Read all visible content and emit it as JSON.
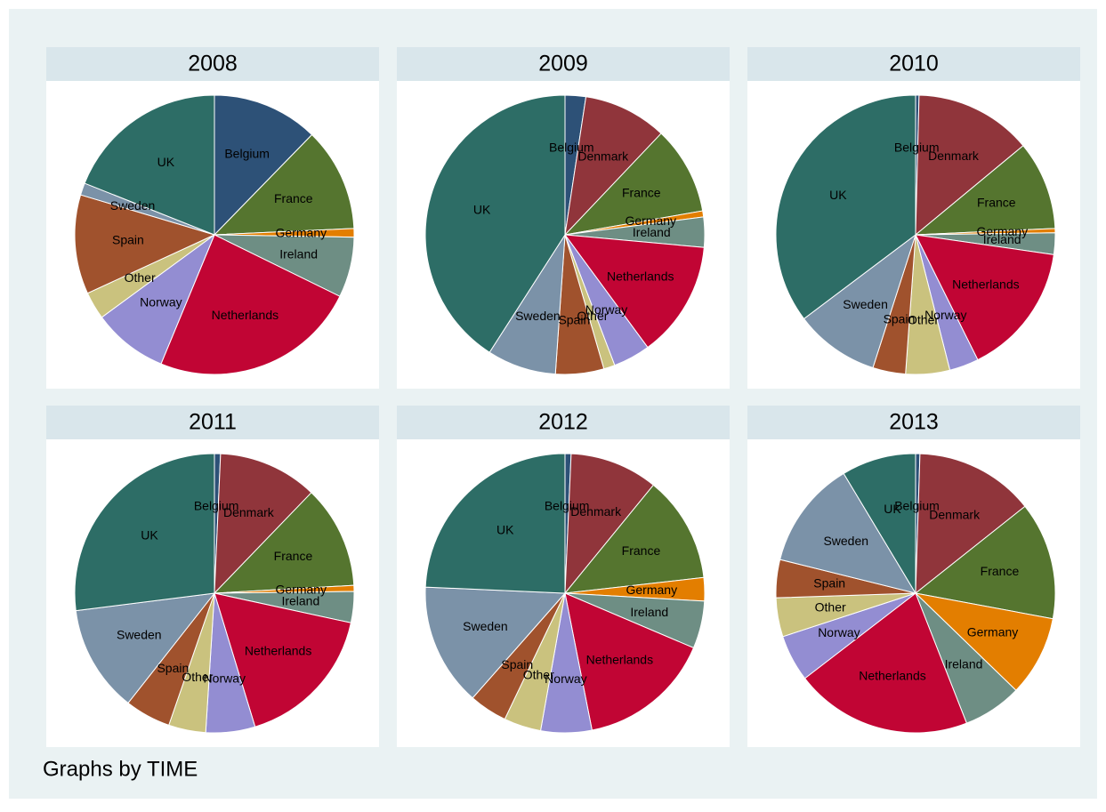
{
  "chart_data": [
    {
      "type": "pie",
      "title": "2008",
      "categories": [
        "Belgium",
        "France",
        "Germany",
        "Ireland",
        "Netherlands",
        "Norway",
        "Other",
        "Spain",
        "Sweden",
        "UK"
      ],
      "values": [
        12.3,
        12,
        1,
        7,
        24,
        8.7,
        3.2,
        11.5,
        1.4,
        19
      ],
      "colors": [
        "#2d5177",
        "#55752f",
        "#e37e00",
        "#6e8e84",
        "#c10534",
        "#938dd2",
        "#cac27e",
        "#a0522d",
        "#7b92a8",
        "#2d6d66"
      ]
    },
    {
      "type": "pie",
      "title": "2009",
      "categories": [
        "Belgium",
        "Denmark",
        "France",
        "Germany",
        "Ireland",
        "Netherlands",
        "Norway",
        "Other",
        "Spain",
        "Sweden",
        "UK"
      ],
      "values": [
        2.4,
        9.7,
        10.2,
        0.7,
        3.5,
        13.5,
        4.3,
        1.3,
        5.6,
        8,
        41
      ],
      "colors": [
        "#2d5177",
        "#90353b",
        "#55752f",
        "#e37e00",
        "#6e8e84",
        "#c10534",
        "#938dd2",
        "#cac27e",
        "#a0522d",
        "#7b92a8",
        "#2d6d66"
      ]
    },
    {
      "type": "pie",
      "title": "2010",
      "categories": [
        "Belgium",
        "Denmark",
        "France",
        "Germany",
        "Ireland",
        "Netherlands",
        "Norway",
        "Other",
        "Spain",
        "Sweden",
        "UK"
      ],
      "values": [
        0.4,
        13.6,
        10.3,
        0.5,
        2.5,
        15.4,
        3.4,
        5.1,
        3.8,
        9.8,
        35.3
      ],
      "colors": [
        "#2d5177",
        "#90353b",
        "#55752f",
        "#e37e00",
        "#6e8e84",
        "#c10534",
        "#938dd2",
        "#cac27e",
        "#a0522d",
        "#7b92a8",
        "#2d6d66"
      ]
    },
    {
      "type": "pie",
      "title": "2011",
      "categories": [
        "Belgium",
        "Denmark",
        "France",
        "Germany",
        "Ireland",
        "Netherlands",
        "Norway",
        "Other",
        "Spain",
        "Sweden",
        "UK"
      ],
      "values": [
        0.7,
        11.5,
        11.9,
        0.7,
        3.6,
        16.9,
        5.7,
        4.3,
        5.3,
        12.4,
        27
      ],
      "colors": [
        "#2d5177",
        "#90353b",
        "#55752f",
        "#e37e00",
        "#6e8e84",
        "#c10534",
        "#938dd2",
        "#cac27e",
        "#a0522d",
        "#7b92a8",
        "#2d6d66"
      ]
    },
    {
      "type": "pie",
      "title": "2012",
      "categories": [
        "Belgium",
        "Denmark",
        "France",
        "Germany",
        "Ireland",
        "Netherlands",
        "Norway",
        "Other",
        "Spain",
        "Sweden",
        "UK"
      ],
      "values": [
        0.7,
        10.2,
        12.3,
        2.7,
        5.5,
        15.5,
        5.9,
        4.3,
        4.4,
        14.2,
        24.3
      ],
      "colors": [
        "#2d5177",
        "#90353b",
        "#55752f",
        "#e37e00",
        "#6e8e84",
        "#c10534",
        "#938dd2",
        "#cac27e",
        "#a0522d",
        "#7b92a8",
        "#2d6d66"
      ]
    },
    {
      "type": "pie",
      "title": "2013",
      "categories": [
        "Belgium",
        "Denmark",
        "France",
        "Germany",
        "Ireland",
        "Netherlands",
        "Norway",
        "Other",
        "Spain",
        "Sweden",
        "UK"
      ],
      "values": [
        0.5,
        13.8,
        13.6,
        9.3,
        6.8,
        20.5,
        5.4,
        4.5,
        4.4,
        12.5,
        8.6
      ],
      "colors": [
        "#2d5177",
        "#90353b",
        "#55752f",
        "#e37e00",
        "#6e8e84",
        "#c10534",
        "#938dd2",
        "#cac27e",
        "#a0522d",
        "#7b92a8",
        "#2d6d66"
      ]
    }
  ],
  "note": "Graphs by TIME"
}
